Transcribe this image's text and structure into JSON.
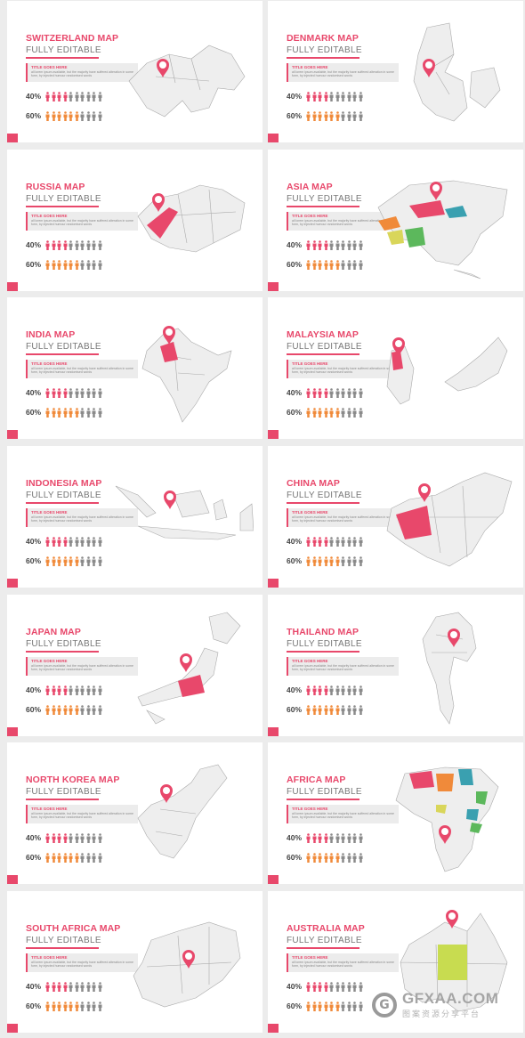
{
  "slides": [
    {
      "title": "SWITZERLAND MAP",
      "subtitle": "FULLY EDITABLE",
      "note_title": "TITLE GOES HERE",
      "note_body": "all lorem ipsum available, but the majority have suffered alteration in some form, by injected humour randomised words",
      "stat1_label": "40%",
      "stat1_value": 40,
      "stat2_label": "60%",
      "stat2_value": 60,
      "map_icon": "switzerland-map",
      "highlight_colors": []
    },
    {
      "title": "DENMARK MAP",
      "subtitle": "FULLY EDITABLE",
      "note_title": "TITLE GOES HERE",
      "note_body": "all lorem ipsum available, but the majority have suffered alteration in some form, by injected humour randomised words",
      "stat1_label": "40%",
      "stat1_value": 40,
      "stat2_label": "60%",
      "stat2_value": 60,
      "map_icon": "denmark-map",
      "highlight_colors": []
    },
    {
      "title": "RUSSIA MAP",
      "subtitle": "FULLY EDITABLE",
      "note_title": "TITLE GOES HERE",
      "note_body": "all lorem ipsum available, but the majority have suffered alteration in some form, by injected humour randomised words",
      "stat1_label": "40%",
      "stat1_value": 40,
      "stat2_label": "60%",
      "stat2_value": 60,
      "map_icon": "russia-map",
      "highlight_colors": [
        "#e8486b"
      ]
    },
    {
      "title": "ASIA MAP",
      "subtitle": "FULLY EDITABLE",
      "note_title": "TITLE GOES HERE",
      "note_body": "all lorem ipsum available, but the majority have suffered alteration in some form, by injected humour randomised words",
      "stat1_label": "40%",
      "stat1_value": 40,
      "stat2_label": "60%",
      "stat2_value": 60,
      "map_icon": "asia-map",
      "highlight_colors": [
        "#e8486b",
        "#3aa0b0",
        "#f08a3a",
        "#5cb85c",
        "#d9d65a"
      ]
    },
    {
      "title": "INDIA MAP",
      "subtitle": "FULLY EDITABLE",
      "note_title": "TITLE GOES HERE",
      "note_body": "all lorem ipsum available, but the majority have suffered alteration in some form, by injected humour randomised words",
      "stat1_label": "40%",
      "stat1_value": 40,
      "stat2_label": "60%",
      "stat2_value": 60,
      "map_icon": "india-map",
      "highlight_colors": [
        "#e8486b"
      ]
    },
    {
      "title": "MALAYSIA MAP",
      "subtitle": "FULLY EDITABLE",
      "note_title": "TITLE GOES HERE",
      "note_body": "all lorem ipsum available, but the majority have suffered alteration in some form, by injected humour randomised words",
      "stat1_label": "40%",
      "stat1_value": 40,
      "stat2_label": "60%",
      "stat2_value": 60,
      "map_icon": "malaysia-map",
      "highlight_colors": [
        "#e8486b"
      ]
    },
    {
      "title": "INDONESIA MAP",
      "subtitle": "FULLY EDITABLE",
      "note_title": "TITLE GOES HERE",
      "note_body": "all lorem ipsum available, but the majority have suffered alteration in some form, by injected humour randomised words",
      "stat1_label": "40%",
      "stat1_value": 40,
      "stat2_label": "60%",
      "stat2_value": 60,
      "map_icon": "indonesia-map",
      "highlight_colors": []
    },
    {
      "title": "CHINA MAP",
      "subtitle": "FULLY EDITABLE",
      "note_title": "TITLE GOES HERE",
      "note_body": "all lorem ipsum available, but the majority have suffered alteration in some form, by injected humour randomised words",
      "stat1_label": "40%",
      "stat1_value": 40,
      "stat2_label": "60%",
      "stat2_value": 60,
      "map_icon": "china-map",
      "highlight_colors": [
        "#e8486b"
      ]
    },
    {
      "title": "JAPAN MAP",
      "subtitle": "FULLY EDITABLE",
      "note_title": "TITLE GOES HERE",
      "note_body": "all lorem ipsum available, but the majority have suffered alteration in some form, by injected humour randomised words",
      "stat1_label": "40%",
      "stat1_value": 40,
      "stat2_label": "60%",
      "stat2_value": 60,
      "map_icon": "japan-map",
      "highlight_colors": [
        "#e8486b"
      ]
    },
    {
      "title": "THAILAND MAP",
      "subtitle": "FULLY EDITABLE",
      "note_title": "TITLE GOES HERE",
      "note_body": "all lorem ipsum available, but the majority have suffered alteration in some form, by injected humour randomised words",
      "stat1_label": "40%",
      "stat1_value": 40,
      "stat2_label": "60%",
      "stat2_value": 60,
      "map_icon": "thailand-map",
      "highlight_colors": []
    },
    {
      "title": "NORTH KOREA MAP",
      "subtitle": "FULLY EDITABLE",
      "note_title": "TITLE GOES HERE",
      "note_body": "all lorem ipsum available, but the majority have suffered alteration in some form, by injected humour randomised words",
      "stat1_label": "40%",
      "stat1_value": 40,
      "stat2_label": "60%",
      "stat2_value": 60,
      "map_icon": "north-korea-map",
      "highlight_colors": []
    },
    {
      "title": "AFRICA MAP",
      "subtitle": "FULLY EDITABLE",
      "note_title": "TITLE GOES HERE",
      "note_body": "all lorem ipsum available, but the majority have suffered alteration in some form, by injected humour randomised words",
      "stat1_label": "40%",
      "stat1_value": 40,
      "stat2_label": "60%",
      "stat2_value": 60,
      "map_icon": "africa-map",
      "highlight_colors": [
        "#e8486b",
        "#3aa0b0",
        "#f08a3a",
        "#5cb85c",
        "#d9d65a"
      ]
    },
    {
      "title": "SOUTH AFRICA MAP",
      "subtitle": "FULLY EDITABLE",
      "note_title": "TITLE GOES HERE",
      "note_body": "all lorem ipsum available, but the majority have suffered alteration in some form, by injected humour randomised words",
      "stat1_label": "40%",
      "stat1_value": 40,
      "stat2_label": "60%",
      "stat2_value": 60,
      "map_icon": "south-africa-map",
      "highlight_colors": []
    },
    {
      "title": "AUSTRALIA MAP",
      "subtitle": "FULLY EDITABLE",
      "note_title": "TITLE GOES HERE",
      "note_body": "all lorem ipsum available, but the majority have suffered alteration in some form, by injected humour randomised words",
      "stat1_label": "40%",
      "stat1_value": 40,
      "stat2_label": "60%",
      "stat2_value": 60,
      "map_icon": "australia-map",
      "highlight_colors": [
        "#c8dc50"
      ]
    }
  ],
  "colors": {
    "accent": "#e8486b",
    "orange": "#f08a3a",
    "grey_person": "#8a8a8a",
    "map_fill": "#eeeeee",
    "map_stroke": "#aaaaaa"
  },
  "watermark": {
    "domain": "GFXAA.COM",
    "sub": "图案资源分享平台",
    "logo_letter": "G"
  }
}
